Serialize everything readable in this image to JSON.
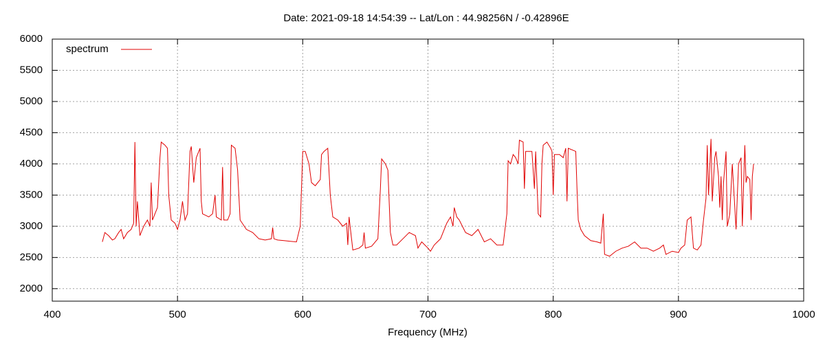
{
  "chart_data": {
    "type": "line",
    "title": "Date: 2021-09-18 14:54:39  --  Lat/Lon : 44.98256N / -0.42896E",
    "x_label": "Frequency (MHz)",
    "xlim": [
      400,
      1000
    ],
    "xticks": [
      400,
      500,
      600,
      700,
      800,
      900,
      1000
    ],
    "ylim": [
      1800,
      6000
    ],
    "yticks": [
      2000,
      2500,
      3000,
      3500,
      4000,
      4500,
      5000,
      5500,
      6000
    ],
    "grid": true,
    "legend": "top-left",
    "x": [
      440,
      442,
      445,
      448,
      450,
      453,
      455,
      457,
      460,
      463,
      465,
      466,
      467,
      468,
      470,
      473,
      476,
      478,
      479,
      480,
      482,
      484,
      486,
      487,
      490,
      492,
      493,
      495,
      498,
      500,
      502,
      504,
      506,
      508,
      510,
      511,
      513,
      515,
      517,
      518,
      519,
      520,
      525,
      528,
      530,
      531,
      535,
      536,
      537,
      540,
      542,
      543,
      546,
      548,
      550,
      555,
      560,
      565,
      570,
      575,
      576,
      577,
      580,
      585,
      590,
      595,
      598,
      600,
      602,
      605,
      607,
      610,
      614,
      615,
      617,
      620,
      622,
      624,
      628,
      632,
      635,
      636,
      637,
      640,
      645,
      648,
      649,
      650,
      655,
      660,
      662,
      663,
      666,
      668,
      670,
      672,
      675,
      680,
      685,
      690,
      692,
      695,
      700,
      702,
      705,
      710,
      715,
      718,
      720,
      721,
      723,
      725,
      730,
      735,
      740,
      745,
      750,
      755,
      760,
      763,
      764,
      766,
      768,
      770,
      772,
      773,
      776,
      777,
      778,
      783,
      785,
      786,
      788,
      790,
      791,
      792,
      795,
      798,
      799,
      800,
      801,
      805,
      808,
      810,
      811,
      812,
      818,
      819,
      820,
      822,
      825,
      830,
      835,
      838,
      840,
      841,
      845,
      850,
      855,
      860,
      865,
      870,
      875,
      880,
      885,
      888,
      890,
      895,
      900,
      902,
      905,
      907,
      910,
      912,
      915,
      918,
      920,
      922,
      923,
      924,
      926,
      927,
      929,
      930,
      932,
      933,
      934,
      935,
      936,
      938,
      939,
      941,
      943,
      946,
      948,
      950,
      951,
      953,
      954,
      955,
      957,
      958,
      959,
      960
    ],
    "series": [
      {
        "name": "spectrum",
        "color": "#e00000",
        "values": [
          2750,
          2900,
          2850,
          2780,
          2800,
          2900,
          2950,
          2800,
          2900,
          2950,
          3050,
          4350,
          3000,
          3400,
          2850,
          3000,
          3100,
          3000,
          3700,
          3100,
          3200,
          3300,
          4100,
          4350,
          4300,
          4250,
          3500,
          3100,
          3050,
          2950,
          3100,
          3400,
          3100,
          3200,
          4200,
          4280,
          3700,
          4100,
          4200,
          4250,
          3400,
          3200,
          3150,
          3200,
          3500,
          3150,
          3100,
          3950,
          3100,
          3100,
          3200,
          4300,
          4250,
          3900,
          3100,
          2950,
          2900,
          2800,
          2780,
          2800,
          2980,
          2800,
          2780,
          2770,
          2760,
          2750,
          3000,
          4200,
          4200,
          4000,
          3700,
          3650,
          3750,
          4150,
          4200,
          4250,
          3500,
          3150,
          3100,
          3000,
          3050,
          2700,
          3150,
          2620,
          2650,
          2700,
          2900,
          2650,
          2680,
          2800,
          3600,
          4080,
          4000,
          3900,
          2900,
          2700,
          2700,
          2800,
          2900,
          2850,
          2650,
          2750,
          2650,
          2600,
          2700,
          2800,
          3050,
          3150,
          3000,
          3300,
          3150,
          3100,
          2900,
          2850,
          2950,
          2750,
          2800,
          2700,
          2700,
          3200,
          4050,
          4000,
          4150,
          4100,
          4000,
          4380,
          4350,
          3600,
          4200,
          4200,
          3600,
          4200,
          3200,
          3150,
          4000,
          4300,
          4350,
          4250,
          4200,
          3500,
          4150,
          4150,
          4100,
          4250,
          3400,
          4250,
          4200,
          3600,
          3100,
          2950,
          2850,
          2770,
          2750,
          2730,
          3200,
          2550,
          2520,
          2600,
          2650,
          2680,
          2750,
          2650,
          2650,
          2600,
          2650,
          2700,
          2550,
          2600,
          2580,
          2650,
          2700,
          3100,
          3150,
          2650,
          2620,
          2700,
          3100,
          3450,
          4300,
          3500,
          4400,
          3400,
          4100,
          4200,
          3800,
          3300,
          3800,
          3100,
          3700,
          4200,
          3000,
          3200,
          4000,
          2950,
          4000,
          4100,
          3000,
          4300,
          3700,
          3800,
          3750,
          3100,
          3800,
          4000
        ]
      }
    ]
  }
}
